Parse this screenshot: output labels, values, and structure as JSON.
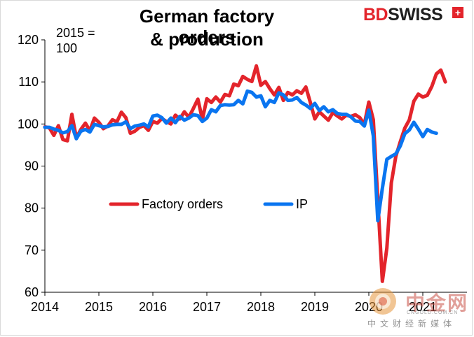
{
  "chart_data": {
    "type": "line",
    "title_line1": "German factory orders",
    "title_line2": "& production",
    "note_line1": "2015 =",
    "note_line2": "100",
    "x_ticks": [
      "2014",
      "2015",
      "2016",
      "2017",
      "2018",
      "2019",
      "2020",
      "2021"
    ],
    "y_ticks": [
      60,
      70,
      80,
      90,
      100,
      110,
      120
    ],
    "ylim": [
      60,
      120
    ],
    "xlim": [
      2014.0,
      2021.25
    ],
    "legend_placement": "center-left",
    "series": [
      {
        "name": "Factory orders",
        "color": "#e3242b",
        "values": [
          99.3,
          99.1,
          97.3,
          99.6,
          96.3,
          96.0,
          102.3,
          96.7,
          98.7,
          100.2,
          98.4,
          101.4,
          100.4,
          98.9,
          99.5,
          101.0,
          100.5,
          102.8,
          101.5,
          97.8,
          98.3,
          99.2,
          99.6,
          98.5,
          100.6,
          100.2,
          101.3,
          100.6,
          100.0,
          102.1,
          101.2,
          102.9,
          101.6,
          103.7,
          105.9,
          101.1,
          106.0,
          105.1,
          106.4,
          105.2,
          107.0,
          106.7,
          109.5,
          109.1,
          111.3,
          110.6,
          110.1,
          113.8,
          109.2,
          110.1,
          108.4,
          106.9,
          108.7,
          105.6,
          107.5,
          106.9,
          107.9,
          107.3,
          108.8,
          105.1,
          101.2,
          102.9,
          101.9,
          100.9,
          102.7,
          101.9,
          101.2,
          102.1,
          101.8,
          102.2,
          101.5,
          99.9,
          105.2,
          101.0,
          82.0,
          62.6,
          70.5,
          86.0,
          92.3,
          95.8,
          99.0,
          101.0,
          105.4,
          107.1,
          106.4,
          106.8,
          108.9,
          111.9,
          112.8,
          110.0
        ]
      },
      {
        "name": "IP",
        "color": "#0a75f0",
        "values": [
          99.2,
          99.2,
          98.8,
          98.5,
          97.9,
          98.2,
          99.6,
          96.5,
          98.3,
          98.7,
          98.1,
          99.9,
          99.6,
          99.3,
          99.4,
          99.8,
          99.9,
          99.9,
          100.5,
          98.9,
          99.5,
          99.7,
          100.0,
          99.3,
          101.9,
          102.1,
          101.5,
          100.2,
          101.4,
          100.3,
          101.8,
          100.9,
          101.4,
          102.2,
          102.0,
          100.6,
          101.4,
          103.4,
          102.9,
          104.4,
          104.6,
          104.5,
          104.6,
          105.6,
          104.8,
          107.8,
          107.5,
          106.4,
          106.7,
          104.1,
          105.6,
          105.1,
          107.4,
          106.9,
          105.6,
          105.7,
          106.3,
          105.1,
          104.5,
          103.7,
          104.9,
          103.2,
          104.1,
          102.9,
          103.4,
          102.5,
          102.3,
          102.3,
          101.7,
          100.7,
          100.6,
          99.5,
          103.3,
          97.2,
          77.0,
          84.7,
          91.6,
          92.3,
          92.9,
          94.8,
          97.7,
          98.6,
          100.4,
          98.8,
          97.0,
          98.7,
          98.1,
          97.8
        ]
      }
    ]
  },
  "logo": {
    "bd": "BD",
    "swiss": "SWISS",
    "cross": "+"
  },
  "watermark": {
    "main": "中金网",
    "small": "CNGOLD.COM.CN",
    "sub": "中文财经新媒体"
  }
}
